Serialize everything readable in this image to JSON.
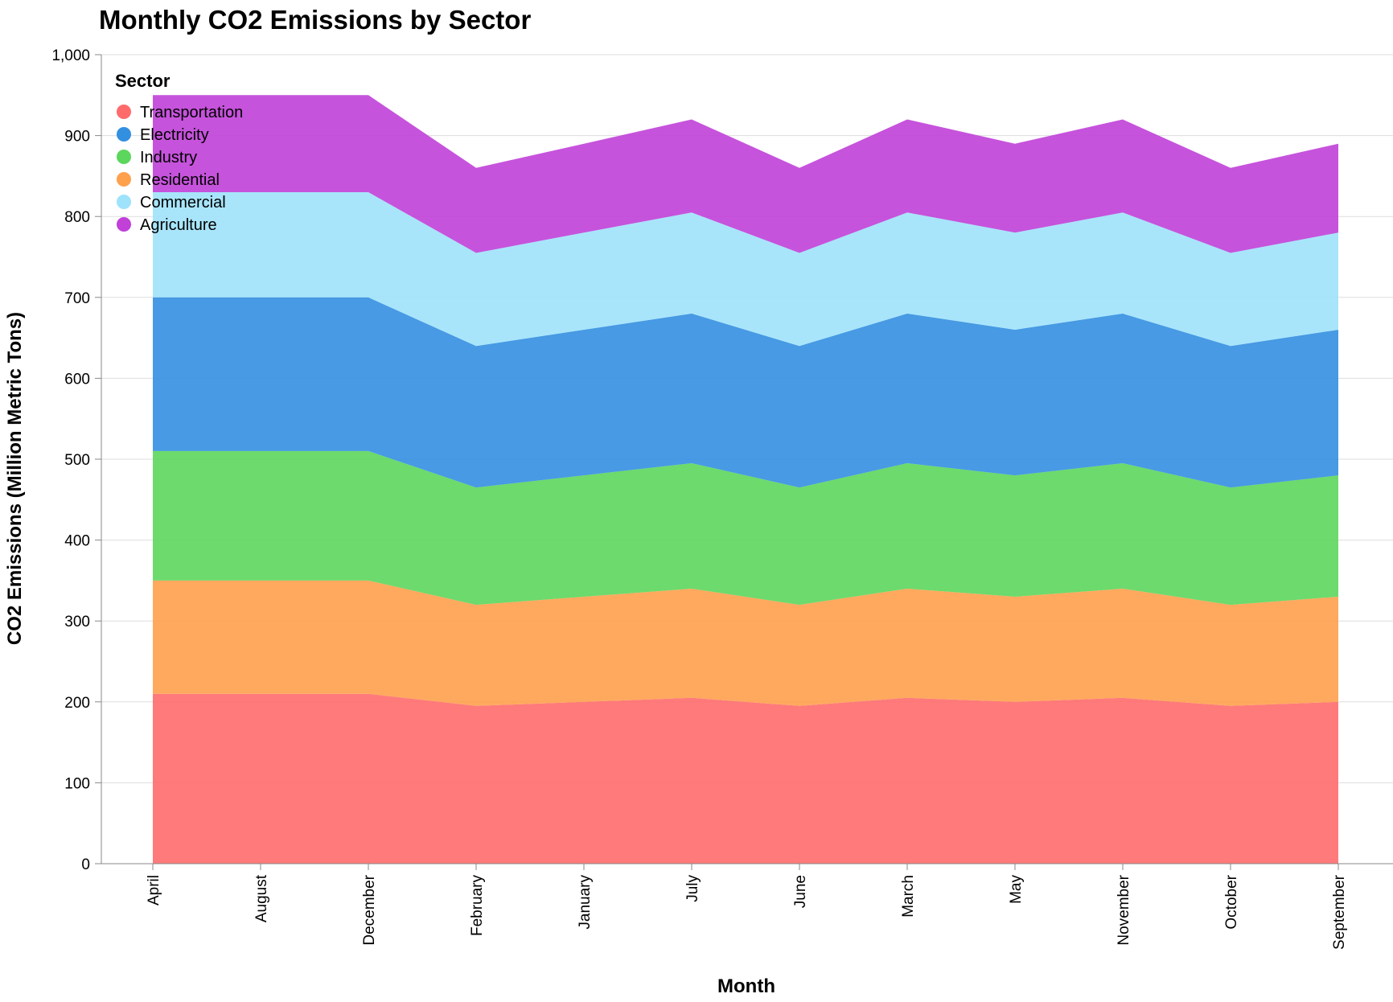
{
  "chart_data": {
    "type": "area",
    "stacked": true,
    "title": "Monthly CO2 Emissions by Sector",
    "xlabel": "Month",
    "ylabel": "CO2 Emissions (Million Metric Tons)",
    "ylim": [
      0,
      1000
    ],
    "yticks": [
      "0",
      "100",
      "200",
      "300",
      "400",
      "500",
      "600",
      "700",
      "800",
      "900",
      "1,000"
    ],
    "grid": true,
    "legend_position": "top-left",
    "legend_title": "Sector",
    "categories": [
      "April",
      "August",
      "December",
      "February",
      "January",
      "July",
      "June",
      "March",
      "May",
      "November",
      "October",
      "September"
    ],
    "series": [
      {
        "name": "Transportation",
        "color": "#ff6b6b",
        "values": [
          210,
          210,
          210,
          195,
          200,
          205,
          195,
          205,
          200,
          205,
          195,
          200
        ]
      },
      {
        "name": "Residential",
        "color": "#ffa04d",
        "values": [
          140,
          140,
          140,
          125,
          130,
          135,
          125,
          135,
          130,
          135,
          125,
          130
        ]
      },
      {
        "name": "Industry",
        "color": "#5cd65c",
        "values": [
          160,
          160,
          160,
          145,
          150,
          155,
          145,
          155,
          150,
          155,
          145,
          150
        ]
      },
      {
        "name": "Electricity",
        "color": "#338fe0",
        "values": [
          190,
          190,
          190,
          175,
          180,
          185,
          175,
          185,
          180,
          185,
          175,
          180
        ]
      },
      {
        "name": "Commercial",
        "color": "#9ee2fb",
        "values": [
          130,
          130,
          130,
          115,
          120,
          125,
          115,
          125,
          120,
          125,
          115,
          120
        ]
      },
      {
        "name": "Agriculture",
        "color": "#c040d8",
        "values": [
          120,
          120,
          120,
          105,
          110,
          115,
          105,
          115,
          110,
          115,
          105,
          110
        ]
      }
    ],
    "legend_order": [
      "Transportation",
      "Electricity",
      "Industry",
      "Residential",
      "Commercial",
      "Agriculture"
    ]
  }
}
